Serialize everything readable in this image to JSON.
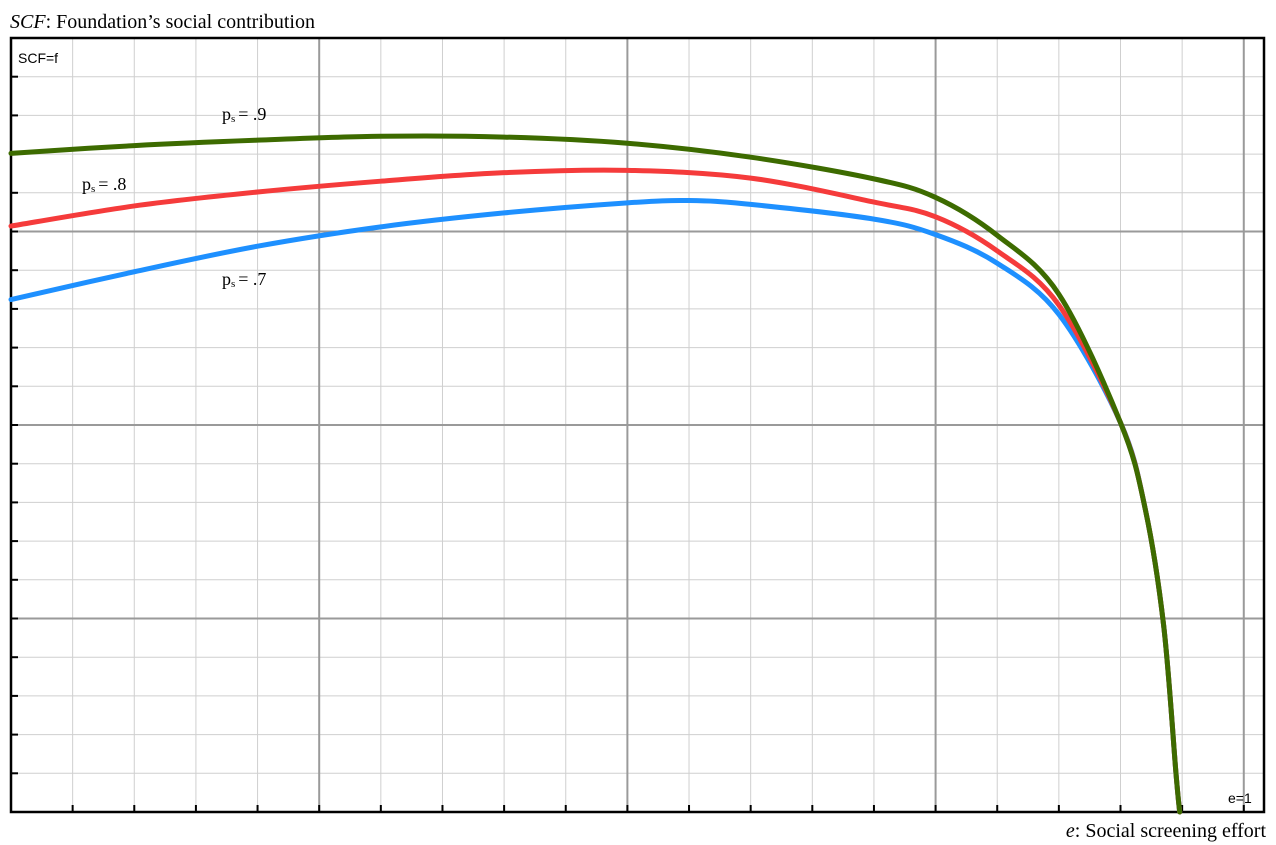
{
  "chart_data": {
    "type": "line",
    "title": {
      "prefix": "SCF",
      "rest": ": Foundation’s social contribution"
    },
    "xlabel": {
      "prefix": "e",
      "rest": ": Social screening effort"
    },
    "y_axis_tag": "SCF=f",
    "x_axis_tag": "e=1",
    "xlim": [
      0,
      1.0164
    ],
    "ylim": [
      0,
      1
    ],
    "grid": true,
    "x_minor_step": 0.05,
    "x_major_step": 0.25,
    "y_minor_step": 0.05,
    "y_major_step": 0.25,
    "series": [
      {
        "label": {
          "symbol": "p",
          "sub": "s",
          "value": "= .9"
        },
        "color": "#3d6b00",
        "points": [
          [
            0,
            0.851
          ],
          [
            0.1,
            0.861
          ],
          [
            0.2,
            0.868
          ],
          [
            0.3,
            0.873
          ],
          [
            0.4,
            0.872
          ],
          [
            0.5,
            0.864
          ],
          [
            0.6,
            0.846
          ],
          [
            0.7,
            0.818
          ],
          [
            0.75,
            0.794
          ],
          [
            0.8,
            0.745
          ],
          [
            0.85,
            0.669
          ],
          [
            0.9,
            0.503
          ],
          [
            0.92,
            0.392
          ],
          [
            0.935,
            0.241
          ],
          [
            0.945,
            0.05
          ],
          [
            0.948,
            0
          ]
        ]
      },
      {
        "label": {
          "symbol": "p",
          "sub": "s",
          "value": "= .8"
        },
        "color": "#f53b3b",
        "points": [
          [
            0,
            0.757
          ],
          [
            0.1,
            0.783
          ],
          [
            0.2,
            0.801
          ],
          [
            0.3,
            0.815
          ],
          [
            0.4,
            0.826
          ],
          [
            0.5,
            0.829
          ],
          [
            0.6,
            0.819
          ],
          [
            0.7,
            0.788
          ],
          [
            0.75,
            0.769
          ],
          [
            0.8,
            0.725
          ],
          [
            0.85,
            0.655
          ],
          [
            0.9,
            0.503
          ],
          [
            0.92,
            0.392
          ],
          [
            0.935,
            0.241
          ],
          [
            0.945,
            0.05
          ],
          [
            0.948,
            0
          ]
        ]
      },
      {
        "label": {
          "symbol": "p",
          "sub": "s",
          "value": "= .7"
        },
        "color": "#1e90ff",
        "points": [
          [
            0,
            0.662
          ],
          [
            0.1,
            0.698
          ],
          [
            0.2,
            0.731
          ],
          [
            0.3,
            0.756
          ],
          [
            0.4,
            0.774
          ],
          [
            0.5,
            0.787
          ],
          [
            0.55,
            0.79
          ],
          [
            0.6,
            0.785
          ],
          [
            0.7,
            0.766
          ],
          [
            0.75,
            0.746
          ],
          [
            0.8,
            0.709
          ],
          [
            0.85,
            0.643
          ],
          [
            0.9,
            0.503
          ],
          [
            0.92,
            0.392
          ],
          [
            0.935,
            0.241
          ],
          [
            0.945,
            0.05
          ],
          [
            0.948,
            0
          ]
        ]
      }
    ]
  }
}
